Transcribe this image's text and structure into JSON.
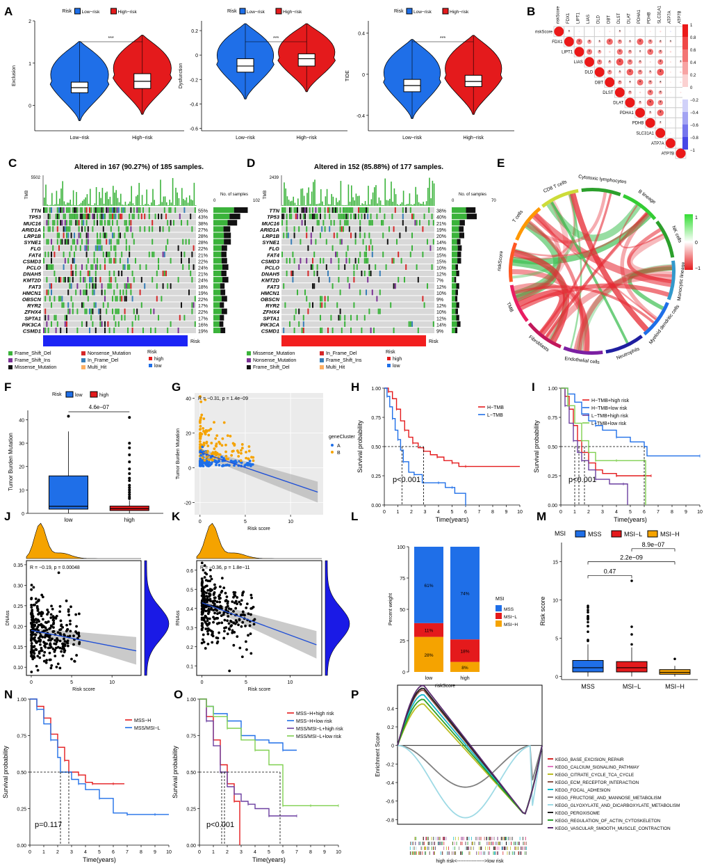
{
  "colors": {
    "low": "#1f6fe8",
    "high": "#e41a1c",
    "orange": "#f5a300",
    "green": "#3bb33b",
    "gray": "#d8d8d8",
    "dark": "#111111",
    "purple": "#6b3fa0",
    "lightgreen": "#7fcf4f"
  },
  "panels": {
    "A": "A",
    "B": "B",
    "C": "C",
    "D": "D",
    "E": "E",
    "F": "F",
    "G": "G",
    "H": "H",
    "I": "I",
    "J": "J",
    "K": "K",
    "L": "L",
    "M": "M",
    "N": "N",
    "O": "O",
    "P": "P"
  },
  "panel_a": {
    "legend_title": "Risk",
    "legend_low": "Low−risk",
    "legend_high": "High−risk",
    "sig": "***",
    "categories": [
      "Low−risk",
      "High−risk"
    ],
    "subplots": [
      {
        "ylabel": "Exclusion",
        "ylim": [
          -0.6,
          2
        ],
        "ticks": [
          0,
          1,
          2
        ],
        "low": {
          "q1": 0.3,
          "med": 0.42,
          "q3": 0.55
        },
        "high": {
          "q1": 0.4,
          "med": 0.57,
          "q3": 0.75
        }
      },
      {
        "ylabel": "Dysfunction",
        "ylim": [
          -0.62,
          0.28
        ],
        "ticks": [
          -0.6,
          -0.4,
          -0.2,
          0.0,
          0.2
        ],
        "low": {
          "q1": -0.14,
          "med": -0.09,
          "q3": -0.03
        },
        "high": {
          "q1": -0.09,
          "med": -0.03,
          "q3": 0.01
        }
      },
      {
        "ylabel": "TIDE",
        "ylim": [
          -0.55,
          0.52
        ],
        "ticks": [
          -0.4,
          0.0,
          0.4
        ],
        "low": {
          "q1": -0.17,
          "med": -0.11,
          "q3": -0.05
        },
        "high": {
          "q1": -0.12,
          "med": -0.07,
          "q3": -0.01
        }
      }
    ]
  },
  "panel_b": {
    "genes": [
      "riskScore",
      "FDX1",
      "LIPT1",
      "LIAS",
      "DLD",
      "DBT",
      "DLST",
      "DLAT",
      "PDHA1",
      "PDHB",
      "SLC31A1",
      "ATP7A",
      "ATP7B"
    ],
    "scale": [
      "1",
      "0.8",
      "0.6",
      "0.4",
      "0.2",
      "0",
      "−0.2",
      "−0.4",
      "−0.6",
      "−0.8",
      "−1"
    ]
  },
  "panel_c": {
    "title": "Altered in 167 (90.27%) of 185 samples.",
    "tmb_max": "5502",
    "tmb_label": "TMB",
    "bar_axis": [
      "0",
      "102"
    ],
    "bar_title": "No. of samples",
    "risk_label": "Risk",
    "genes": [
      "TTN",
      "TP53",
      "MUC16",
      "ARID1A",
      "LRP1B",
      "SYNE1",
      "FLG",
      "FAT4",
      "CSMD3",
      "PCLO",
      "DNAH5",
      "KMT2D",
      "FAT3",
      "HMCN1",
      "OBSCN",
      "RYR2",
      "ZFHX4",
      "SPTA1",
      "PIK3CA",
      "CSMD1"
    ],
    "pcts": [
      "55%",
      "43%",
      "38%",
      "27%",
      "28%",
      "28%",
      "22%",
      "21%",
      "22%",
      "24%",
      "21%",
      "24%",
      "18%",
      "19%",
      "22%",
      "17%",
      "22%",
      "17%",
      "16%",
      "19%"
    ],
    "legend": [
      "Frame_Shift_Del",
      "Frame_Shift_Ins",
      "Missense_Mutation",
      "Nonsense_Mutation",
      "In_Frame_Del",
      "Multi_Hit"
    ],
    "risk_legend": [
      "Risk",
      "high",
      "low"
    ]
  },
  "panel_d": {
    "title": "Altered in 152 (85.88%) of 177 samples.",
    "tmb_max": "2439",
    "tmb_label": "TMB",
    "bar_axis": [
      "0",
      "70"
    ],
    "bar_title": "No. of samples",
    "risk_label": "Risk",
    "genes": [
      "TTN",
      "TP53",
      "MUC16",
      "ARID1A",
      "LRP1B",
      "SYNE1",
      "FLG",
      "FAT4",
      "CSMD3",
      "PCLO",
      "DNAH5",
      "KMT2D",
      "FAT3",
      "HMCN1",
      "OBSCN",
      "RYR2",
      "ZFHX4",
      "SPTA1",
      "PIK3CA",
      "CSMD1"
    ],
    "pcts": [
      "38%",
      "40%",
      "21%",
      "19%",
      "20%",
      "14%",
      "16%",
      "15%",
      "15%",
      "10%",
      "12%",
      "7%",
      "12%",
      "10%",
      "9%",
      "12%",
      "10%",
      "12%",
      "14%",
      "9%"
    ],
    "legend": [
      "Missense_Mutation",
      "Nonsense_Mutation",
      "Frame_Shift_Del",
      "In_Frame_Del",
      "Frame_Shift_Ins",
      "Multi_Hit"
    ],
    "risk_legend": [
      "Risk",
      "high",
      "low"
    ]
  },
  "panel_e": {
    "sectors": [
      "Cytotoxic lymphocytes",
      "B lineage",
      "NK cells",
      "Monocytic lineage",
      "Myeloid dendritic cells",
      "Neutrophils",
      "Endothelial cells",
      "Fibroblasts",
      "TMB",
      "riskScore",
      "T cells",
      "CD8 T cells"
    ],
    "scale": [
      "1",
      "0",
      "−1"
    ]
  },
  "chart_data": [
    {
      "panel": "F",
      "type": "box",
      "title": "",
      "legend_title": "Risk",
      "legend": [
        "low",
        "high"
      ],
      "categories": [
        "low",
        "high"
      ],
      "pvalue": "4.6e−07",
      "ylabel": "Tumor Burden Mutation",
      "ylim": [
        0,
        44
      ],
      "ticks": [
        0,
        10,
        20,
        30,
        40
      ],
      "boxes": [
        {
          "name": "low",
          "min": 0,
          "q1": 1.8,
          "med": 3,
          "q3": 16,
          "max": 35
        },
        {
          "name": "high",
          "min": 0,
          "q1": 1.2,
          "med": 2,
          "q3": 3.1,
          "max": 5.5
        }
      ],
      "outliers_high": [
        6.3,
        7,
        8,
        9,
        10,
        11,
        12,
        14,
        15,
        17,
        19,
        22,
        25,
        28,
        30,
        41
      ]
    },
    {
      "panel": "G",
      "type": "scatter",
      "annotation": "R = −0.31, p = 1.4e−09",
      "xlabel": "Risk score",
      "ylabel": "Tumor Burden Mutation",
      "xlim": [
        -0.6,
        13.6
      ],
      "ylim": [
        -27,
        43
      ],
      "xticks": [
        0,
        5,
        10
      ],
      "yticks": [
        -20,
        0,
        20,
        40
      ],
      "legend_title": "geneCluster",
      "legend": [
        "A",
        "B"
      ],
      "fit": [
        [
          0,
          9
        ],
        [
          13,
          -14
        ]
      ]
    },
    {
      "panel": "H",
      "type": "survival",
      "xlabel": "Time(years)",
      "ylabel": "Survival probability",
      "pvalue": "p<0.001",
      "legend": [
        "H−TMB",
        "L−TMB"
      ],
      "xlim": [
        0,
        10
      ],
      "xticks": [
        0,
        1,
        2,
        3,
        4,
        5,
        6,
        7,
        8,
        9,
        10
      ],
      "yticks": [
        0,
        0.25,
        0.5,
        0.75,
        1
      ],
      "medians": [
        1.3,
        2.9
      ],
      "series": [
        {
          "name": "H−TMB",
          "x": [
            0,
            0.3,
            0.6,
            0.9,
            1.2,
            1.5,
            1.8,
            2.1,
            2.5,
            2.9,
            3.4,
            3.9,
            4.4,
            5,
            5.5,
            6,
            10
          ],
          "y": [
            1,
            0.97,
            0.91,
            0.82,
            0.72,
            0.64,
            0.58,
            0.53,
            0.49,
            0.46,
            0.43,
            0.41,
            0.38,
            0.36,
            0.33,
            0.33,
            0.33
          ]
        },
        {
          "name": "L−TMB",
          "x": [
            0,
            0.2,
            0.4,
            0.6,
            0.8,
            1.0,
            1.2,
            1.4,
            1.8,
            2.2,
            2.8,
            4,
            4.5,
            5,
            5.2,
            6
          ],
          "y": [
            1,
            0.93,
            0.84,
            0.74,
            0.64,
            0.56,
            0.47,
            0.37,
            0.28,
            0.26,
            0.19,
            0.19,
            0.15,
            0.15,
            0.1,
            0
          ]
        }
      ]
    },
    {
      "panel": "I",
      "type": "survival",
      "xlabel": "Time(years)",
      "ylabel": "Survival probability",
      "pvalue": "p<0.001",
      "legend": [
        "H−TMB+high risk",
        "H−TMB+low risk",
        "L−TMB+high risk",
        "L−TMB+low risk"
      ],
      "xlim": [
        0,
        10
      ],
      "xticks": [
        0,
        1,
        2,
        3,
        4,
        5,
        6,
        7,
        8,
        9,
        10
      ],
      "yticks": [
        0,
        0.25,
        0.5,
        0.75,
        1
      ],
      "medians": [
        1.0,
        1.3,
        1.7,
        6.0
      ],
      "series": [
        {
          "name": "H−TMB+high risk",
          "x": [
            0,
            0.3,
            0.6,
            0.9,
            1.2,
            1.5,
            2,
            2.5,
            3,
            4,
            5,
            6.5
          ],
          "y": [
            1,
            0.93,
            0.82,
            0.68,
            0.55,
            0.45,
            0.36,
            0.3,
            0.27,
            0.25,
            0.25,
            0.25
          ]
        },
        {
          "name": "H−TMB+low risk",
          "x": [
            0,
            0.5,
            1,
            1.5,
            2,
            2.5,
            3,
            4,
            5,
            6,
            6.2,
            10
          ],
          "y": [
            1,
            0.95,
            0.88,
            0.78,
            0.72,
            0.68,
            0.64,
            0.58,
            0.54,
            0.5,
            0.42,
            0.42
          ]
        },
        {
          "name": "L−TMB+high risk",
          "x": [
            0,
            0.3,
            0.6,
            0.9,
            1.2,
            1.5,
            2,
            2.5,
            3.5,
            4.5,
            4.8
          ],
          "y": [
            1,
            0.85,
            0.7,
            0.55,
            0.45,
            0.38,
            0.3,
            0.22,
            0.18,
            0.18,
            0
          ]
        },
        {
          "name": "L−TMB+low risk",
          "x": [
            0,
            0.5,
            1,
            1.5,
            2,
            2.5,
            3,
            4,
            5,
            6,
            6.1
          ],
          "y": [
            1,
            0.85,
            0.7,
            0.55,
            0.45,
            0.38,
            0.38,
            0.38,
            0.38,
            0.38,
            0
          ]
        }
      ]
    },
    {
      "panel": "J",
      "type": "scatter",
      "annotation": "R = −0.19, p = 0.00048",
      "xlabel": "Risk score",
      "ylabel": "DNAss",
      "xlim": [
        -0.6,
        13.6
      ],
      "ylim": [
        0.08,
        0.36
      ],
      "xticks": [
        0,
        5,
        10
      ],
      "yticks": [
        0.1,
        0.15,
        0.2,
        0.25,
        0.3,
        0.35
      ],
      "fit": [
        [
          0,
          0.19
        ],
        [
          13,
          0.14
        ]
      ]
    },
    {
      "panel": "K",
      "type": "scatter",
      "annotation": "R = −0.36, p = 1.8e−11",
      "xlabel": "Risk score",
      "ylabel": "RNAss",
      "xlim": [
        -0.6,
        13.6
      ],
      "ylim": [
        0.05,
        0.65
      ],
      "xticks": [
        0,
        5,
        10
      ],
      "yticks": [
        0.1,
        0.2,
        0.3,
        0.4,
        0.5,
        0.6
      ],
      "fit": [
        [
          0,
          0.43
        ],
        [
          13,
          0.21
        ]
      ]
    },
    {
      "panel": "L",
      "type": "stacked_bar",
      "xlabel": "riskScore",
      "ylabel": "Percent weight",
      "categories": [
        "low",
        "high"
      ],
      "legend_title": "MSI",
      "legend": [
        "MSS",
        "MSI−L",
        "MSI−H"
      ],
      "yticks": [
        0,
        25,
        50,
        75,
        100
      ],
      "series": [
        {
          "name": "MSI−H",
          "values": [
            28,
            8
          ]
        },
        {
          "name": "MSI−L",
          "values": [
            11,
            18
          ]
        },
        {
          "name": "MSS",
          "values": [
            61,
            74
          ]
        }
      ],
      "labels": [
        [
          "28%",
          "11%",
          "61%"
        ],
        [
          "8%",
          "18%",
          "74%"
        ]
      ]
    },
    {
      "panel": "M",
      "type": "box",
      "legend_title": "MSI",
      "legend": [
        "MSS",
        "MSI−L",
        "MSI−H"
      ],
      "categories": [
        "MSS",
        "MSI−L",
        "MSI−H"
      ],
      "ylabel": "Risk score",
      "ylim": [
        -0.4,
        17.5
      ],
      "ticks": [
        0,
        5,
        10,
        15
      ],
      "comparisons": [
        "0.47",
        "2.2e−09",
        "8.9e−07"
      ],
      "boxes": [
        {
          "name": "MSS",
          "min": 0,
          "q1": 0.6,
          "med": 1.15,
          "q3": 2.1,
          "max": 4.2
        },
        {
          "name": "MSI−L",
          "min": 0,
          "q1": 0.6,
          "med": 1.15,
          "q3": 1.95,
          "max": 3.8
        },
        {
          "name": "MSI−H",
          "min": 0,
          "q1": 0.3,
          "med": 0.55,
          "q3": 0.9,
          "max": 1.4
        }
      ]
    },
    {
      "panel": "N",
      "type": "survival",
      "xlabel": "Time(years)",
      "ylabel": "Survival probability",
      "pvalue": "p=0.117",
      "legend": [
        "MSS−H",
        "MSS/MSI−L"
      ],
      "xlim": [
        0,
        10
      ],
      "xticks": [
        0,
        1,
        2,
        3,
        4,
        5,
        6,
        7,
        8,
        9,
        10
      ],
      "yticks": [
        0,
        0.25,
        0.5,
        0.75,
        1
      ],
      "medians": [
        2.2,
        2.8
      ],
      "series": [
        {
          "name": "MSS−H",
          "x": [
            0,
            0.5,
            1,
            1.5,
            2,
            2.5,
            2.8,
            3.5,
            4,
            4.5,
            5,
            6,
            6.8
          ],
          "y": [
            1,
            0.95,
            0.87,
            0.76,
            0.67,
            0.58,
            0.5,
            0.48,
            0.43,
            0.42,
            0.42,
            0.42,
            0.42
          ]
        },
        {
          "name": "MSS/MSI−L",
          "x": [
            0,
            0.5,
            1,
            1.5,
            2,
            2.2,
            3,
            3.5,
            4,
            5,
            6,
            7,
            8,
            9,
            10
          ],
          "y": [
            1,
            0.93,
            0.83,
            0.72,
            0.6,
            0.5,
            0.45,
            0.42,
            0.38,
            0.32,
            0.22,
            0.21,
            0.21,
            0.21,
            0.21
          ]
        }
      ]
    },
    {
      "panel": "O",
      "type": "survival",
      "xlabel": "Time(years)",
      "ylabel": "Survival probability",
      "pvalue": "p<0.001",
      "legend": [
        "MSS−H+high risk",
        "MSS−H+low risk",
        "MSS/MSI−L+high risk",
        "MSS/MSI−L+low risk"
      ],
      "xlim": [
        0,
        10
      ],
      "xticks": [
        0,
        1,
        2,
        3,
        4,
        5,
        6,
        7,
        8,
        9,
        10
      ],
      "yticks": [
        0,
        0.25,
        0.5,
        0.75,
        1
      ],
      "medians": [
        1.6,
        1.8,
        5.8
      ],
      "series": [
        {
          "name": "MSS−H+high risk",
          "x": [
            0,
            0.5,
            1,
            1.5,
            2,
            2.5,
            2.9
          ],
          "y": [
            1,
            0.88,
            0.72,
            0.55,
            0.42,
            0.3,
            0
          ]
        },
        {
          "name": "MSS−H+low risk",
          "x": [
            0,
            0.5,
            1,
            2,
            3,
            4,
            5,
            6,
            7
          ],
          "y": [
            1,
            0.95,
            0.9,
            0.85,
            0.75,
            0.72,
            0.7,
            0.65,
            0.65
          ]
        },
        {
          "name": "MSS/MSI−L+high risk",
          "x": [
            0,
            0.5,
            1,
            1.5,
            2,
            2.5,
            3,
            3.5,
            4,
            5,
            6,
            7
          ],
          "y": [
            1,
            0.85,
            0.68,
            0.5,
            0.4,
            0.35,
            0.3,
            0.28,
            0.25,
            0.2,
            0.2,
            0.2
          ]
        },
        {
          "name": "MSS/MSI−L+low risk",
          "x": [
            0,
            0.5,
            1,
            2,
            3,
            4,
            5,
            6,
            7,
            8,
            9,
            10
          ],
          "y": [
            1,
            0.95,
            0.88,
            0.8,
            0.72,
            0.65,
            0.55,
            0.27,
            0.27,
            0.27,
            0.27,
            0.27
          ]
        }
      ]
    },
    {
      "panel": "P",
      "type": "line",
      "ylabel": "Enrichment Score",
      "yticks": [
        0.4,
        0.2,
        0,
        -0.2,
        -0.4,
        -0.6,
        -0.8
      ],
      "axis_caption": "high risk<----------------->low risk",
      "series_names": [
        "KEGG_BASE_EXCISION_REPAIR",
        "KEGG_CALCIUM_SIGNALING_PATHWAY",
        "KEGG_CITRATE_CYCLE_TCA_CYCLE",
        "KEGG_ECM_RECEPTOR_INTERACTION",
        "KEGG_FOCAL_ADHESION",
        "KEGG_FRUCTOSE_AND_MANNOSE_METABOLISM",
        "KEGG_GLYOXYLATE_AND_DICARBOXYLATE_METABOLISM",
        "KEGG_PEROXISOME",
        "KEGG_REGULATION_OF_ACTIN_CYTOSKELETON",
        "KEGG_VASCULAR_SMOOTH_MUSCLE_CONTRACTION"
      ],
      "series_colors": [
        "#d62728",
        "#e377c2",
        "#bcbd22",
        "#8c564b",
        "#17becf",
        "#7f7f7f",
        "#9edae5",
        "#1f1f1f",
        "#2ca02c",
        "#5b2c6f"
      ],
      "peaks": [
        0.6,
        0.55,
        0.45,
        0.6,
        0.55,
        -0.45,
        -0.78,
        0.62,
        0.5,
        0.65
      ]
    }
  ]
}
